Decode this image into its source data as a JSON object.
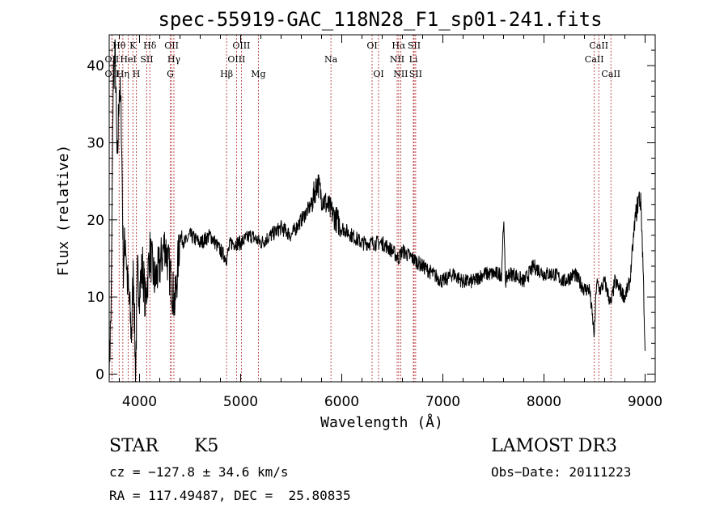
{
  "chart_data": {
    "type": "line",
    "title": "spec-55919-GAC_118N28_F1_sp01-241.fits",
    "xlabel": "Wavelength (Å)",
    "ylabel": "Flux (relative)",
    "xlim": [
      3700,
      9100
    ],
    "ylim": [
      -1,
      44
    ],
    "xticks": [
      4000,
      5000,
      6000,
      7000,
      8000,
      9000
    ],
    "yticks": [
      0,
      10,
      20,
      30,
      40
    ],
    "series": [
      {
        "name": "flux",
        "x": [
          3700,
          3720,
          3740,
          3760,
          3780,
          3800,
          3820,
          3840,
          3860,
          3880,
          3900,
          3920,
          3940,
          3960,
          3980,
          4000,
          4030,
          4060,
          4100,
          4150,
          4200,
          4250,
          4300,
          4350,
          4400,
          4450,
          4500,
          4600,
          4700,
          4800,
          4860,
          4900,
          5000,
          5100,
          5200,
          5300,
          5400,
          5500,
          5600,
          5700,
          5760,
          5800,
          5850,
          5900,
          5950,
          6000,
          6100,
          6200,
          6300,
          6400,
          6500,
          6560,
          6600,
          6700,
          6800,
          6900,
          7000,
          7100,
          7200,
          7300,
          7400,
          7500,
          7580,
          7600,
          7620,
          7650,
          7700,
          7800,
          7900,
          8000,
          8100,
          8200,
          8300,
          8400,
          8450,
          8498,
          8520,
          8542,
          8560,
          8600,
          8662,
          8700,
          8750,
          8800,
          8850,
          8900,
          8940,
          8960,
          8980,
          9000
        ],
        "y": [
          0.5,
          9,
          39,
          41,
          26,
          38,
          33,
          14,
          18,
          12,
          9,
          5,
          14,
          0,
          13,
          11,
          14,
          9,
          16,
          12,
          14,
          17,
          13,
          9,
          18,
          17,
          18,
          17,
          18,
          16,
          15,
          17,
          17,
          18,
          17,
          18,
          19,
          18,
          20,
          22,
          25,
          23,
          22,
          21,
          20,
          19,
          18,
          17,
          17,
          17,
          16,
          15,
          16,
          15,
          14,
          13,
          12,
          13,
          12,
          12,
          13,
          13,
          13,
          20,
          12,
          13,
          13,
          12,
          14,
          13,
          13,
          12,
          13,
          11,
          11,
          5,
          12,
          11,
          11,
          12,
          9,
          12,
          11,
          10,
          12,
          20,
          23,
          22,
          14,
          3
        ]
      }
    ],
    "spectral_lines": [
      {
        "label": "Hθ",
        "wl": 3798,
        "row": 0
      },
      {
        "label": "K",
        "wl": 3934,
        "row": 0
      },
      {
        "label": "Hδ",
        "wl": 4102,
        "row": 0
      },
      {
        "label": "OII",
        "wl": 4317,
        "row": 0
      },
      {
        "label": "OIII",
        "wl": 5007,
        "row": 0
      },
      {
        "label": "OI",
        "wl": 6300,
        "row": 0
      },
      {
        "label": "Hα",
        "wl": 6563,
        "row": 0
      },
      {
        "label": "SII",
        "wl": 6716,
        "row": 0
      },
      {
        "label": "CaII",
        "wl": 8542,
        "row": 0
      },
      {
        "label": "OII",
        "wl": 3727,
        "row": 1
      },
      {
        "label": "HeI",
        "wl": 3889,
        "row": 1
      },
      {
        "label": "SII",
        "wl": 4072,
        "row": 1
      },
      {
        "label": "Hγ",
        "wl": 4340,
        "row": 1
      },
      {
        "label": "OIII",
        "wl": 4959,
        "row": 1
      },
      {
        "label": "Na",
        "wl": 5893,
        "row": 1
      },
      {
        "label": "NII",
        "wl": 6548,
        "row": 1
      },
      {
        "label": "Li",
        "wl": 6708,
        "row": 1
      },
      {
        "label": "CaII",
        "wl": 8498,
        "row": 1
      },
      {
        "label": "OII",
        "wl": 3727,
        "row": 2
      },
      {
        "label": "Hη",
        "wl": 3835,
        "row": 2
      },
      {
        "label": "H",
        "wl": 3968,
        "row": 2
      },
      {
        "label": "G",
        "wl": 4304,
        "row": 2
      },
      {
        "label": "Hβ",
        "wl": 4861,
        "row": 2
      },
      {
        "label": "Mg",
        "wl": 5175,
        "row": 2
      },
      {
        "label": "OI",
        "wl": 6364,
        "row": 2
      },
      {
        "label": "NII",
        "wl": 6583,
        "row": 2
      },
      {
        "label": "SII",
        "wl": 6731,
        "row": 2
      },
      {
        "label": "CaII",
        "wl": 8662,
        "row": 2
      }
    ]
  },
  "info": {
    "class": "STAR",
    "subclass": "K5",
    "survey": "LAMOST DR3",
    "cz": "cz = −127.8 ± 34.6 km/s",
    "obs_date": "Obs−Date: 20111223",
    "radec": "RA = 117.49487, DEC =  25.80835"
  },
  "colors": {
    "axis": "#000000",
    "line_marker": "#b22222",
    "spectrum": "#000000"
  }
}
